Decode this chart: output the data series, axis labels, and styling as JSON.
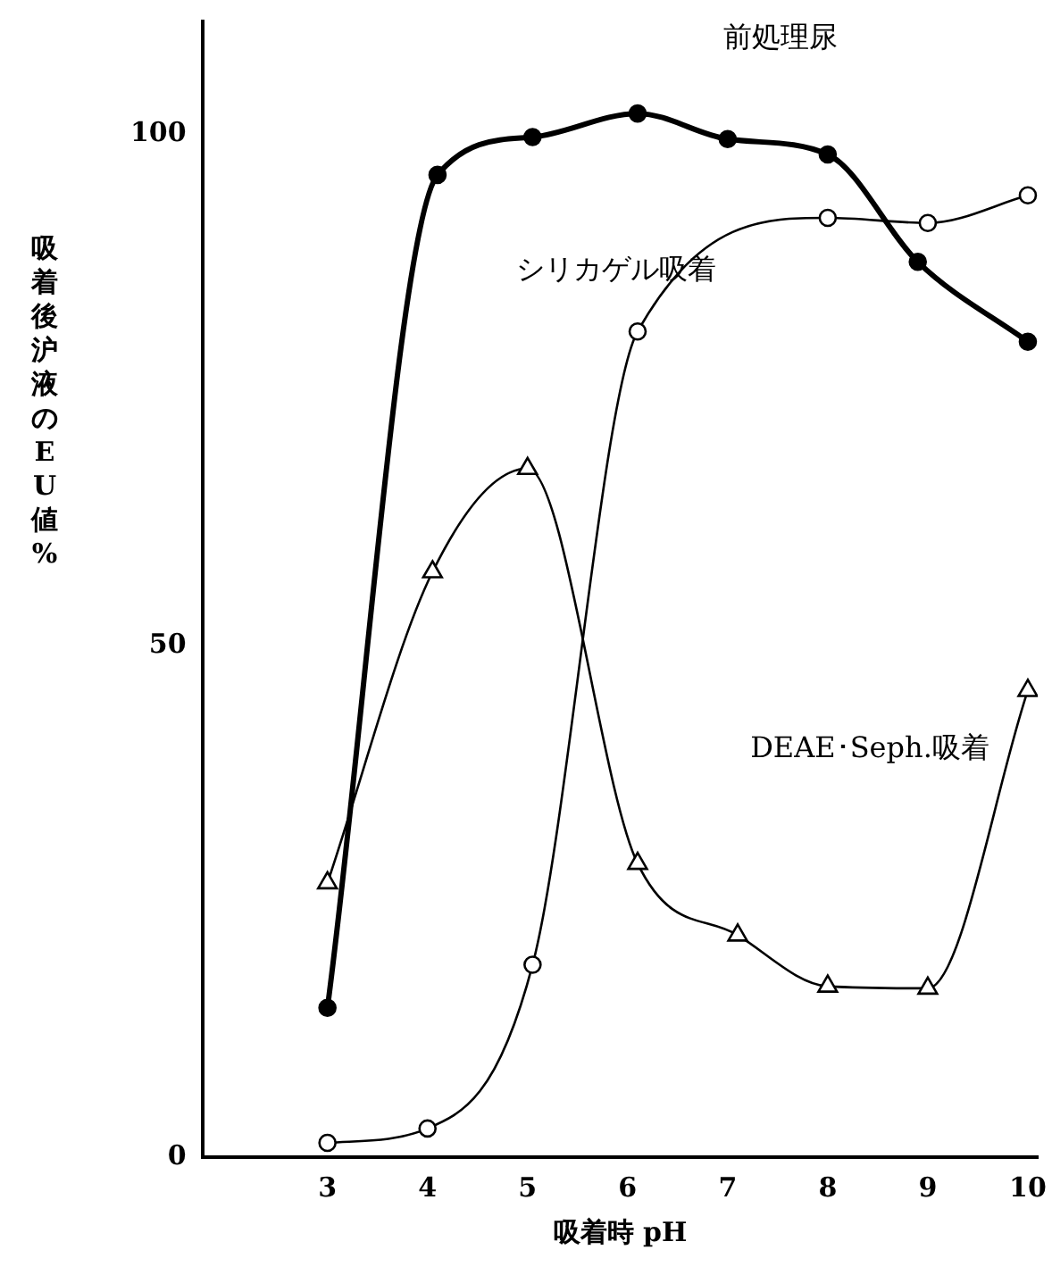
{
  "chart_data": {
    "type": "line",
    "xlabel": "吸着時 pH",
    "ylabel": "吸着後沪液のEU値%",
    "xlim": [
      1.75,
      10.1
    ],
    "xticks": [
      3,
      4,
      5,
      6,
      7,
      8,
      9,
      10
    ],
    "ylim": [
      0,
      111
    ],
    "yticks": [
      0,
      50,
      100
    ],
    "grid": false,
    "legend": false,
    "line_style": "solid",
    "series": [
      {
        "color": "#000000",
        "marker": "circle",
        "x": [
          3,
          4.1,
          5.05,
          6.1,
          7.0,
          8.0,
          8.9,
          10
        ],
        "values": [
          14.6,
          96,
          99.7,
          102,
          99.5,
          98,
          87.5,
          79.7
        ]
      },
      {
        "color": "#000000",
        "marker": "circle",
        "x": [
          3,
          4,
          5.05,
          6.1,
          8.0,
          9.0,
          10
        ],
        "values": [
          1.4,
          2.8,
          18.8,
          80.7,
          91.8,
          91.3,
          94
        ]
      },
      {
        "color": "#000000",
        "marker": "triangle",
        "x": [
          3,
          4.05,
          5.0,
          6.1,
          7.1,
          8.0,
          9.0,
          10
        ],
        "values": [
          26.8,
          57.2,
          67.3,
          28.7,
          21.7,
          16.7,
          16.5,
          45.6
        ]
      }
    ],
    "annotations": [
      "前処理尿",
      "シリカゲル吸着",
      "DEAE･Seph.吸着"
    ]
  }
}
